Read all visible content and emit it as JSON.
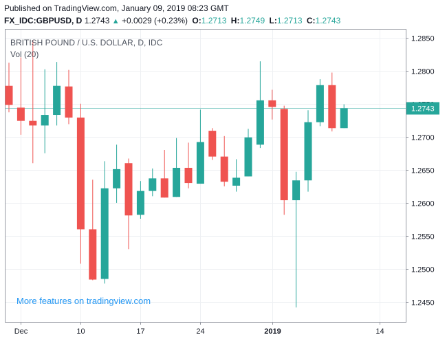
{
  "header": {
    "published": "Published on TradingView.com, January 09, 2019 08:23 GMT",
    "symbol": "FX_IDC:GBPUSD, D",
    "last": "1.2743",
    "change": "+0.0029 (+0.23%)",
    "o_label": "O:",
    "o_value": "1.2713",
    "h_label": "H:",
    "h_value": "1.2749",
    "l_label": "L:",
    "l_value": "1.2713",
    "c_label": "C:",
    "c_value": "1.2743"
  },
  "legend": {
    "title": "BRITISH POUND / U.S. DOLLAR, D, IDC",
    "volume": "Vol (20)"
  },
  "promo": "More features on tradingview.com",
  "price_tag": "1.2743",
  "colors": {
    "up": "#26a69a",
    "down": "#ef5350",
    "grid": "#eef0f3",
    "price_line": "#26a69a",
    "promo": "#2196f3"
  },
  "chart_data": {
    "type": "candlestick",
    "ylim": [
      1.242,
      1.2862
    ],
    "y_ticks": [
      "1.2850",
      "1.2800",
      "1.2750",
      "1.2700",
      "1.2650",
      "1.2600",
      "1.2550",
      "1.2500",
      "1.2450"
    ],
    "x_ticks": [
      {
        "label": "Dec",
        "index": 1
      },
      {
        "label": "10",
        "index": 6
      },
      {
        "label": "17",
        "index": 11
      },
      {
        "label": "24",
        "index": 16
      },
      {
        "label": "2019",
        "index": 22
      },
      {
        "label": "14",
        "index": 31
      }
    ],
    "last_price": 1.2743,
    "candles": [
      {
        "o": 1.2777,
        "h": 1.2812,
        "l": 1.2737,
        "c": 1.2748
      },
      {
        "o": 1.2744,
        "h": 1.282,
        "l": 1.2703,
        "c": 1.2724
      },
      {
        "o": 1.2724,
        "h": 1.2846,
        "l": 1.266,
        "c": 1.2717
      },
      {
        "o": 1.2717,
        "h": 1.2802,
        "l": 1.2675,
        "c": 1.2733
      },
      {
        "o": 1.2733,
        "h": 1.2813,
        "l": 1.2717,
        "c": 1.2777
      },
      {
        "o": 1.2776,
        "h": 1.2801,
        "l": 1.2719,
        "c": 1.2729
      },
      {
        "o": 1.2729,
        "h": 1.275,
        "l": 1.2508,
        "c": 1.256
      },
      {
        "o": 1.256,
        "h": 1.2635,
        "l": 1.2483,
        "c": 1.2484
      },
      {
        "o": 1.2485,
        "h": 1.2663,
        "l": 1.2478,
        "c": 1.2622
      },
      {
        "o": 1.2622,
        "h": 1.2688,
        "l": 1.26,
        "c": 1.2651
      },
      {
        "o": 1.266,
        "h": 1.2667,
        "l": 1.253,
        "c": 1.2581
      },
      {
        "o": 1.2582,
        "h": 1.2633,
        "l": 1.2576,
        "c": 1.2618
      },
      {
        "o": 1.2618,
        "h": 1.2652,
        "l": 1.261,
        "c": 1.2637
      },
      {
        "o": 1.2637,
        "h": 1.268,
        "l": 1.2608,
        "c": 1.2608
      },
      {
        "o": 1.2609,
        "h": 1.2698,
        "l": 1.2609,
        "c": 1.2653
      },
      {
        "o": 1.2653,
        "h": 1.2691,
        "l": 1.2622,
        "c": 1.263
      },
      {
        "o": 1.2629,
        "h": 1.2741,
        "l": 1.2629,
        "c": 1.2692
      },
      {
        "o": 1.2709,
        "h": 1.2713,
        "l": 1.2665,
        "c": 1.267
      },
      {
        "o": 1.267,
        "h": 1.2701,
        "l": 1.2625,
        "c": 1.2632
      },
      {
        "o": 1.2626,
        "h": 1.2666,
        "l": 1.2617,
        "c": 1.2638
      },
      {
        "o": 1.264,
        "h": 1.2712,
        "l": 1.264,
        "c": 1.2699
      },
      {
        "o": 1.2688,
        "h": 1.2814,
        "l": 1.2683,
        "c": 1.2755
      },
      {
        "o": 1.2755,
        "h": 1.2771,
        "l": 1.2726,
        "c": 1.2745
      },
      {
        "o": 1.2742,
        "h": 1.2747,
        "l": 1.2582,
        "c": 1.2604
      },
      {
        "o": 1.2604,
        "h": 1.2647,
        "l": 1.2442,
        "c": 1.2634
      },
      {
        "o": 1.2634,
        "h": 1.274,
        "l": 1.2617,
        "c": 1.2722
      },
      {
        "o": 1.2722,
        "h": 1.2787,
        "l": 1.2716,
        "c": 1.2778
      },
      {
        "o": 1.2778,
        "h": 1.2797,
        "l": 1.2708,
        "c": 1.2713
      },
      {
        "o": 1.2713,
        "h": 1.2749,
        "l": 1.2713,
        "c": 1.2743
      }
    ]
  }
}
